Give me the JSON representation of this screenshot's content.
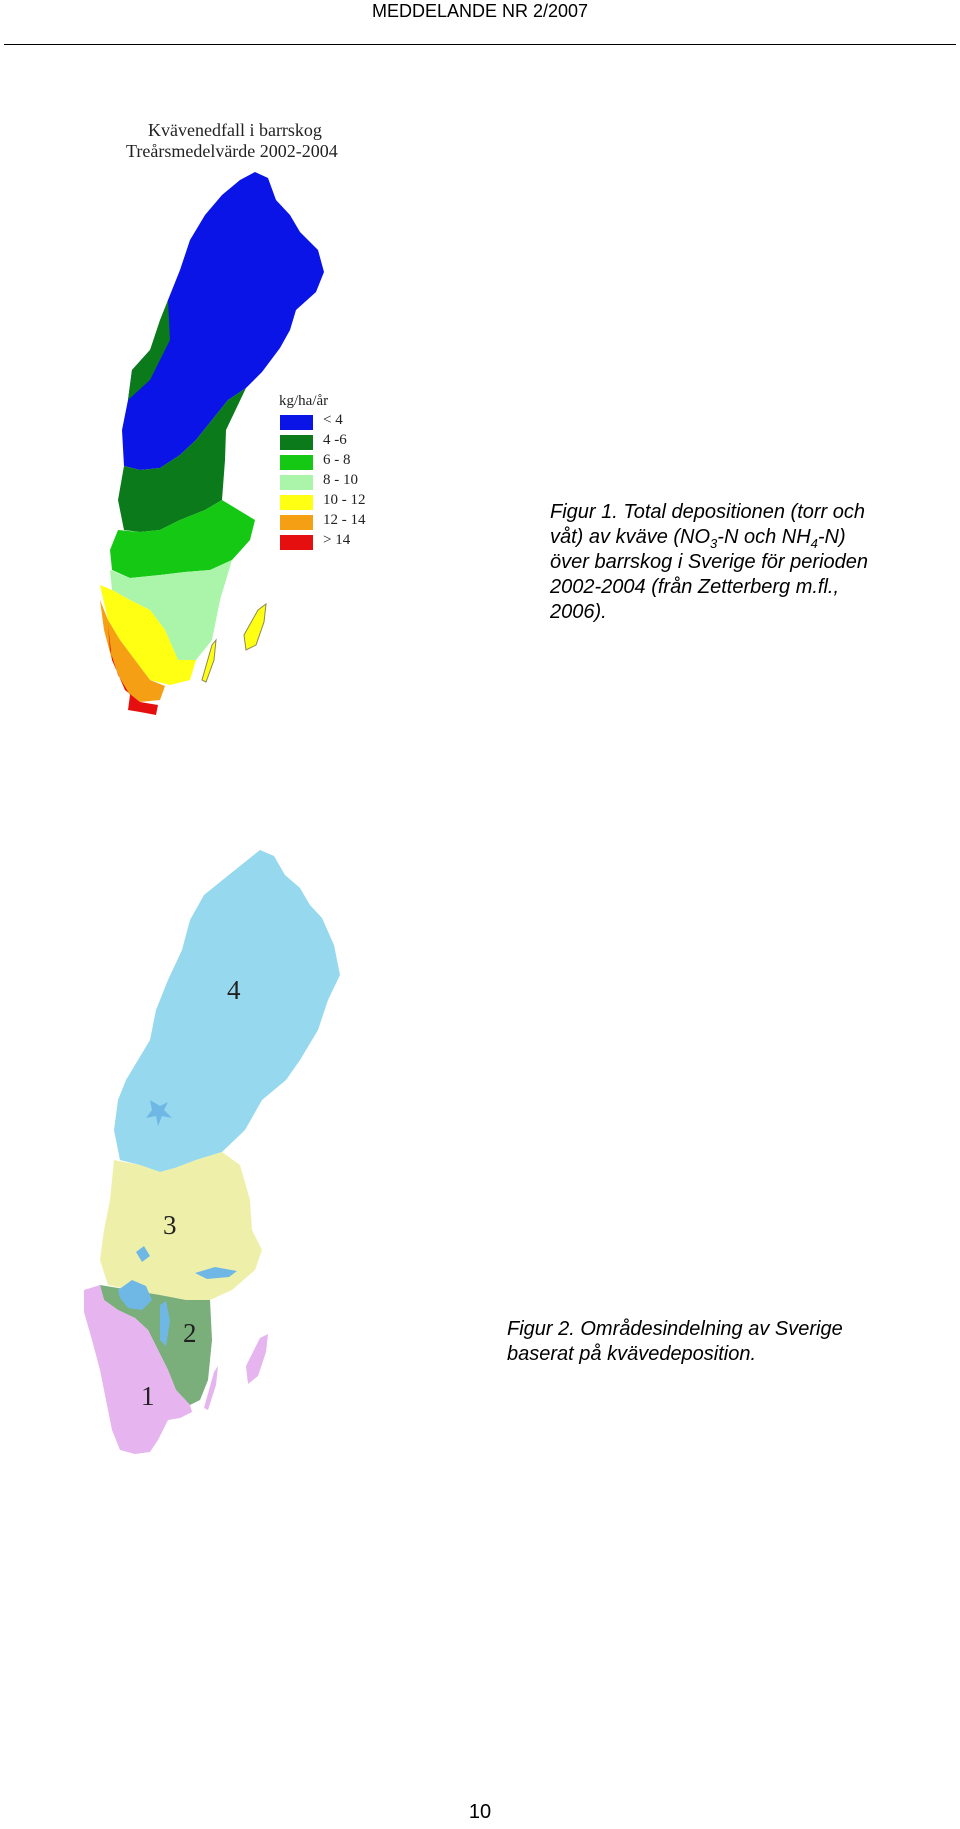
{
  "header": {
    "title": "MEDDELANDE NR 2/2007"
  },
  "figure1": {
    "map_title_line1": "Kvävenedfall i barrskog",
    "map_title_line2": "Treårsmedelvärde 2002-2004",
    "legend": {
      "title": "kg/ha/år",
      "items": [
        {
          "label": "< 4",
          "color": "#0a14e6"
        },
        {
          "label": "4 -6",
          "color": "#0b7a1a"
        },
        {
          "label": "6 - 8",
          "color": "#14c814"
        },
        {
          "label": "8 - 10",
          "color": "#aaf5aa"
        },
        {
          "label": "10 - 12",
          "color": "#ffff14"
        },
        {
          "label": "12 - 14",
          "color": "#f5a014"
        },
        {
          "label": "> 14",
          "color": "#e60f0f"
        }
      ]
    },
    "caption": {
      "part1": "Figur 1. Total depositionen (torr och våt) av kväve (NO",
      "sub1": "3",
      "part2": "-N och NH",
      "sub2": "4",
      "part3": "-N) över barrskog i Sverige för perioden 2002-2004 (från Zetterberg m.fl., 2006)."
    }
  },
  "figure2": {
    "regions": [
      {
        "label": "4",
        "color": "#96d8ee"
      },
      {
        "label": "3",
        "color": "#eef0aa"
      },
      {
        "label": "2",
        "color": "#7aae7a"
      },
      {
        "label": "1",
        "color": "#e6b4ee"
      }
    ],
    "caption": "Figur 2. Områdesindelning av Sverige baserat på kvävedeposition."
  },
  "footer": {
    "page_number": "10"
  }
}
